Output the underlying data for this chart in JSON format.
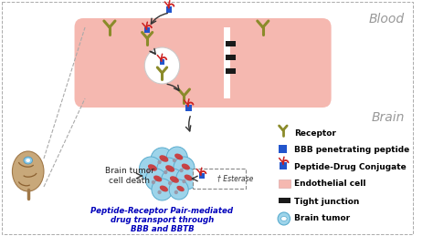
{
  "background_color": "#ffffff",
  "blood_label": "Blood",
  "brain_label": "Brain",
  "label_color": "#999999",
  "endothelial_color": "#f5b8b0",
  "tight_junction_color": "#1a1a1a",
  "receptor_color": "#8b8b2a",
  "bbb_peptide_color": "#2255cc",
  "lesion_color": "#cc3333",
  "tumor_fill": "#9dd4ea",
  "tumor_stroke": "#5aacce",
  "tumor_cell_fill": "#c8e8f5",
  "italic_label_color": "#0000bb",
  "italic_label_line1": "Peptide-Receptor Pair-mediated",
  "italic_label_line2": "drug transport through",
  "italic_label_line3": "BBB and BBTB",
  "cell_death_label": "Brain tumor\ncell death",
  "esterase_label": "† Esterase",
  "dashed_color": "#aaaaaa",
  "legend_receptor": "Receptor",
  "legend_bbb": "BBB penetrating peptide",
  "legend_conjugate": "Peptide-Drug Conjugate",
  "legend_endo": "Endothelial cell",
  "legend_tj": "Tight junction",
  "legend_tumor": "Brain tumor",
  "figsize": [
    4.74,
    2.59
  ],
  "dpi": 100
}
